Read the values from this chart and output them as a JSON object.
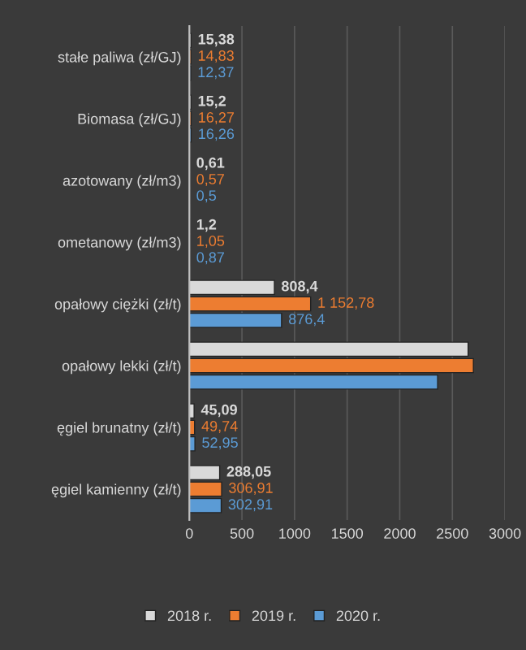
{
  "chart_data": {
    "type": "bar",
    "orientation": "horizontal",
    "categories": [
      "stałe paliwa (zł/GJ)",
      "Biomasa (zł/GJ)",
      "azotowany (zł/m3)",
      "ometanowy (zł/m3)",
      "opałowy ciężki (zł/t)",
      "opałowy lekki (zł/t)",
      "ęgiel brunatny (zł/t)",
      "ęgiel kamienny (zł/t)"
    ],
    "series": [
      {
        "name": "2018 r.",
        "color": "#d9d9d9",
        "values": [
          15.38,
          15.2,
          0.61,
          1.2,
          808.4,
          2650,
          45.09,
          288.05
        ],
        "value_labels": [
          "15,38",
          "15,2",
          "0,61",
          "1,2",
          "808,4",
          null,
          "45,09",
          "288,05"
        ]
      },
      {
        "name": "2019 r.",
        "color": "#ed7d31",
        "values": [
          14.83,
          16.27,
          0.57,
          1.05,
          1152.78,
          2700,
          49.74,
          306.91
        ],
        "value_labels": [
          "14,83",
          "16,27",
          "0,57",
          "1,05",
          "1 152,78",
          null,
          "49,74",
          "306,91"
        ]
      },
      {
        "name": "2020 r.",
        "color": "#5b9bd5",
        "values": [
          12.37,
          16.26,
          0.5,
          0.87,
          876.4,
          2360,
          52.95,
          302.91
        ],
        "value_labels": [
          "12,37",
          "16,26",
          "0,5",
          "0,87",
          "876,4",
          null,
          "52,95",
          "302,91"
        ]
      }
    ],
    "xlim": [
      0,
      3000
    ],
    "xticks": [
      0,
      500,
      1000,
      1500,
      2000,
      2500,
      3000
    ],
    "grid": "x",
    "legend": "bottom"
  }
}
